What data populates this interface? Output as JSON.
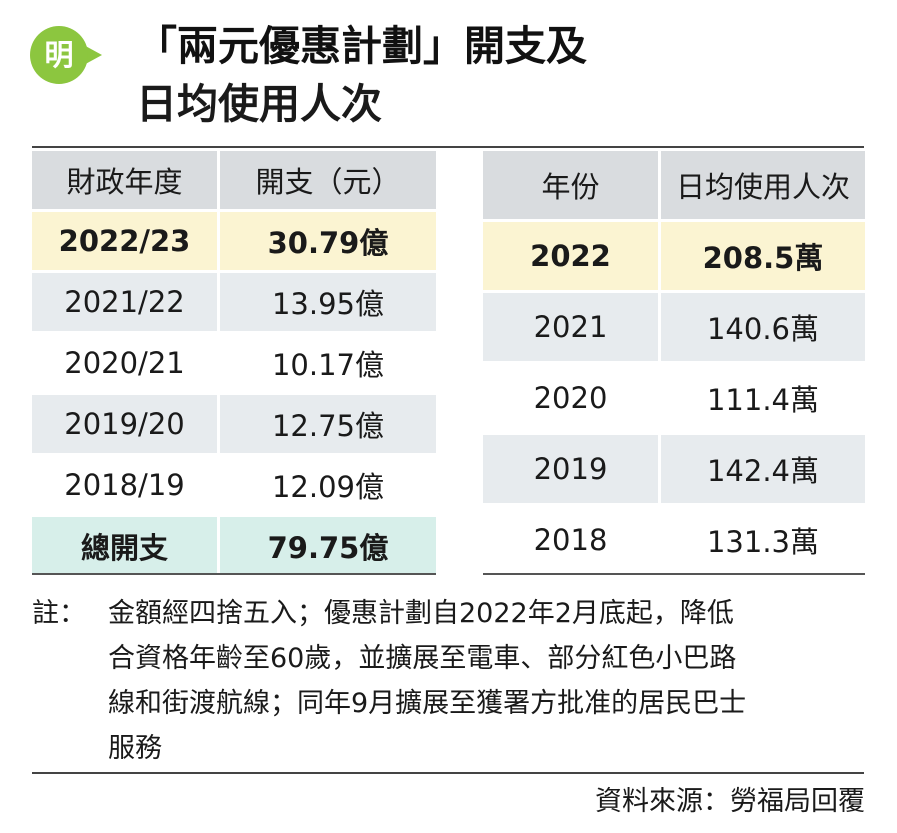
{
  "logo": {
    "text": "明"
  },
  "title": {
    "line1": "「兩元優惠計劃」開支及",
    "line2": "日均使用人次"
  },
  "expenditure_table": {
    "headers": [
      "財政年度",
      "開支（元）"
    ],
    "rows": [
      {
        "year": "2022/23",
        "amount": "30.79億"
      },
      {
        "year": "2021/22",
        "amount": "13.95億"
      },
      {
        "year": "2020/21",
        "amount": "10.17億"
      },
      {
        "year": "2019/20",
        "amount": "12.75億"
      },
      {
        "year": "2018/19",
        "amount": "12.09億"
      }
    ],
    "total": {
      "label": "總開支",
      "amount": "79.75億"
    }
  },
  "ridership_table": {
    "headers": [
      "年份",
      "日均使用人次"
    ],
    "rows": [
      {
        "year": "2022",
        "count": "208.5萬"
      },
      {
        "year": "2021",
        "count": "140.6萬"
      },
      {
        "year": "2020",
        "count": "111.4萬"
      },
      {
        "year": "2019",
        "count": "142.4萬"
      },
      {
        "year": "2018",
        "count": "131.3萬"
      }
    ]
  },
  "note": {
    "label": "註：",
    "line1": "金額經四捨五入；優惠計劃自2022年2月底起，降低",
    "line2": "合資格年齡至60歲，並擴展至電車、部分紅色小巴路",
    "line3": "線和街渡航線；同年9月擴展至獲署方批准的居民巴士",
    "line4": "服務"
  },
  "source": "資料來源：勞福局回覆",
  "colors": {
    "logo_green": "#8cc63f",
    "header_grey": "#d9dcdf",
    "highlight_yellow": "#fbf4d2",
    "row_grey": "#e7ebee",
    "total_teal": "#d7efea"
  }
}
